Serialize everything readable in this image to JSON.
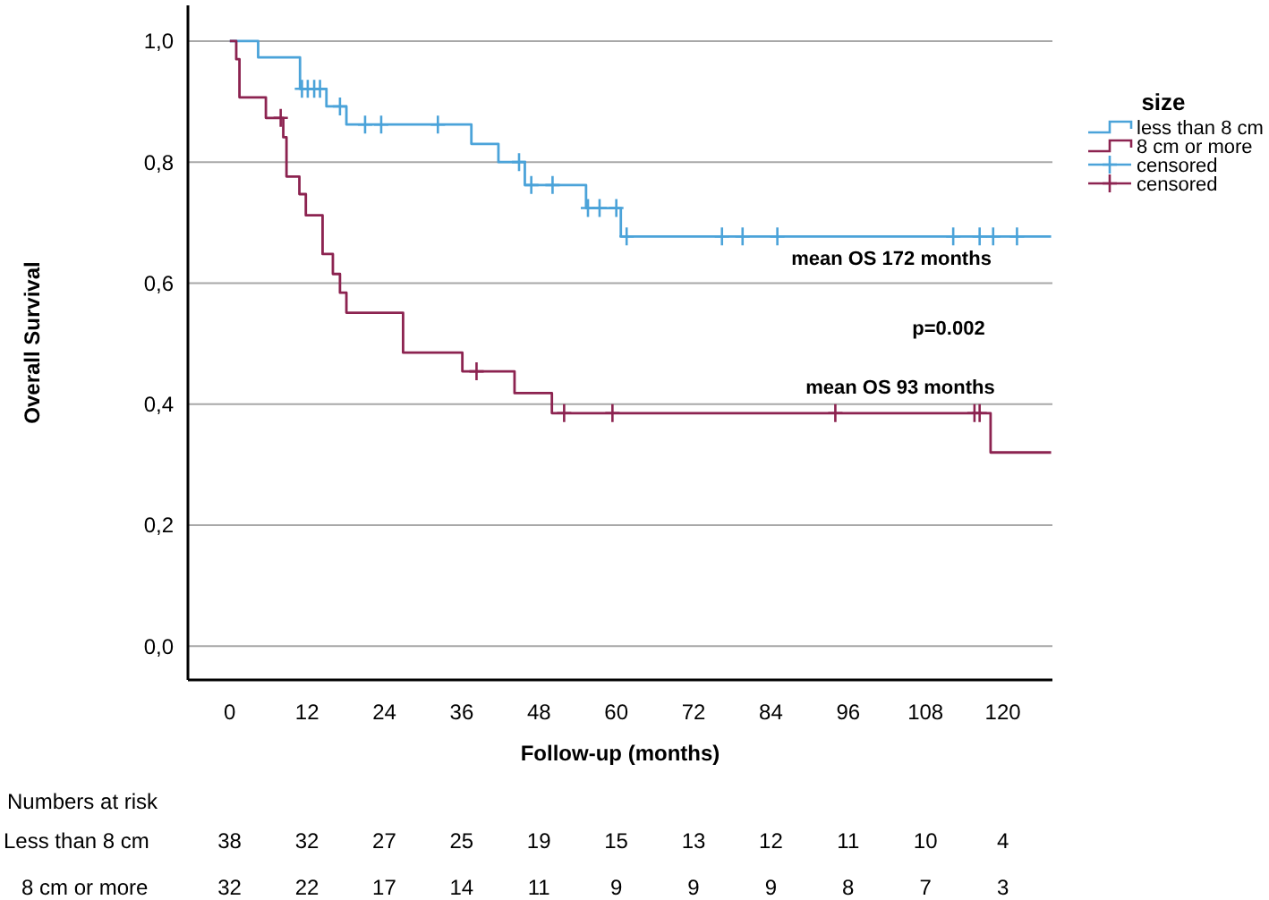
{
  "chart_data": {
    "type": "step",
    "xlabel": "Follow-up (months)",
    "ylabel": "Overall Survival",
    "legend_title": "size",
    "legend": "right",
    "grid": "y",
    "xlim": [
      -6.5,
      127.7
    ],
    "ylim": [
      -0.056,
      1.059
    ],
    "xticks": [
      0,
      12,
      24,
      36,
      48,
      60,
      72,
      84,
      96,
      108,
      120
    ],
    "yticks": [
      {
        "value": 0,
        "label": "0,0"
      },
      {
        "value": 0.2,
        "label": "0,2"
      },
      {
        "value": 0.4,
        "label": "0,4"
      },
      {
        "value": 0.6,
        "label": "0,6"
      },
      {
        "value": 0.8,
        "label": "0,8"
      },
      {
        "value": 1,
        "label": "1,0"
      }
    ],
    "annotations": [
      "mean OS 172 months",
      "p=0.002",
      "mean OS 93 months",
      "Numbers at risk",
      "Less than 8 cm",
      "38",
      "32",
      "27",
      "25",
      "19",
      "15",
      "13",
      "12",
      "11",
      "10",
      "4",
      "8 cm or more",
      "32",
      "22",
      "17",
      "14",
      "11",
      "9",
      "9",
      "9",
      "8",
      "7",
      "3"
    ],
    "series": [
      {
        "name": "less than 8 cm",
        "type": "step",
        "color": "#4ba3d9",
        "x": [
          0,
          4.4,
          10.9,
          15,
          18.1,
          37.5,
          41.7,
          45.8,
          55.3,
          60.7,
          127.5
        ],
        "values": [
          1,
          0.973,
          0.921,
          0.892,
          0.862,
          0.83,
          0.8,
          0.762,
          0.724,
          0.677,
          0.677
        ]
      },
      {
        "name": "8 cm or more",
        "type": "step",
        "color": "#8c2350",
        "x": [
          0,
          1,
          1.5,
          5.6,
          8.3,
          8.8,
          10.8,
          11.8,
          14.4,
          16,
          17.1,
          18.1,
          26.9,
          36.1,
          44.2,
          50,
          118.1,
          127.5
        ],
        "values": [
          1,
          0.97,
          0.907,
          0.873,
          0.841,
          0.776,
          0.747,
          0.712,
          0.648,
          0.615,
          0.584,
          0.551,
          0.485,
          0.454,
          0.418,
          0.385,
          0.32,
          0.32
        ]
      },
      {
        "name": "censored",
        "type": "scatter",
        "marker": "cross",
        "color": "#4ba3d9",
        "x": [
          11.2,
          12.1,
          13.1,
          14.0,
          17.1,
          21.0,
          23.5,
          32.3,
          44.9,
          46.8,
          50.1,
          55.6,
          57.4,
          60.0,
          61.6,
          76.4,
          79.6,
          85.0,
          112.3,
          116.4,
          118.5,
          122.2
        ],
        "values": [
          0.921,
          0.921,
          0.921,
          0.921,
          0.892,
          0.862,
          0.862,
          0.862,
          0.8,
          0.762,
          0.762,
          0.724,
          0.724,
          0.724,
          0.677,
          0.677,
          0.677,
          0.677,
          0.677,
          0.677,
          0.677,
          0.677
        ]
      },
      {
        "name": "censored",
        "type": "scatter",
        "marker": "cross",
        "color": "#8c2350",
        "x": [
          7.9,
          38.3,
          51.9,
          59.4,
          94.0,
          115.6,
          116.4
        ],
        "values": [
          0.873,
          0.454,
          0.385,
          0.385,
          0.385,
          0.385,
          0.385
        ]
      }
    ]
  }
}
